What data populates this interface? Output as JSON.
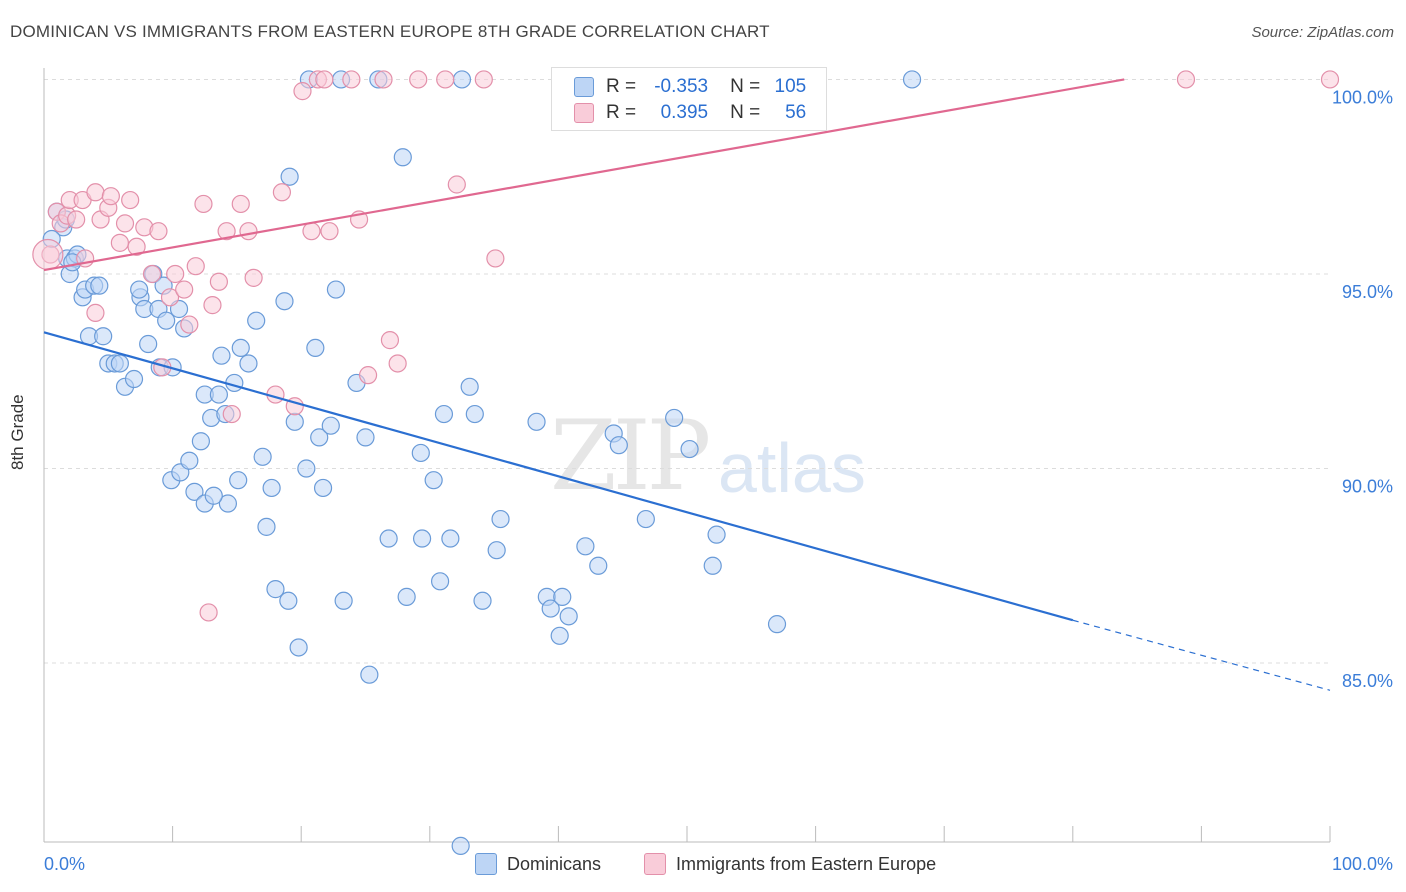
{
  "header": {
    "title": "DOMINICAN VS IMMIGRANTS FROM EASTERN EUROPE 8TH GRADE CORRELATION CHART",
    "source": "Source: ZipAtlas.com"
  },
  "watermark": {
    "zip": "ZIP",
    "atlas": "atlas"
  },
  "legend": {
    "rows": [
      {
        "r_label": "R =",
        "r_value": "-0.353",
        "n_label": "N =",
        "n_value": "105"
      },
      {
        "r_label": "R =",
        "r_value": "0.395",
        "n_label": "N =",
        "n_value": "56"
      }
    ],
    "bottom": [
      {
        "label": "Dominicans"
      },
      {
        "label": "Immigrants from Eastern Europe"
      }
    ]
  },
  "colors": {
    "blue_fill": "#bdd5f5",
    "blue_stroke": "#6a9bd8",
    "blue_line": "#2b6fd1",
    "pink_fill": "#f9ccd9",
    "pink_stroke": "#e390aa",
    "pink_line": "#e06890",
    "tick_label": "#3b7dd8"
  },
  "chart_data": {
    "type": "scatter",
    "title": "DOMINICAN VS IMMIGRANTS FROM EASTERN EUROPE 8TH GRADE CORRELATION CHART",
    "xlabel": "",
    "ylabel": "8th Grade",
    "xlim": [
      0,
      100
    ],
    "ylim": [
      80.4,
      100.5
    ],
    "x_tick_labels": [
      "0.0%",
      "100.0%"
    ],
    "y_ticks": [
      {
        "value": 100,
        "label": "100.0%"
      },
      {
        "value": 95,
        "label": "95.0%"
      },
      {
        "value": 90,
        "label": "90.0%"
      },
      {
        "value": 85,
        "label": "85.0%"
      }
    ],
    "grid": true,
    "legend_position": "top-center",
    "series": [
      {
        "name": "Dominicans",
        "R": -0.353,
        "N": 105,
        "trend": {
          "x0": 0,
          "y0": 93.5,
          "x1": 80,
          "y1": 86.1,
          "dashed_to_x": 100,
          "dashed_to_y": 84.3
        },
        "points": [
          [
            1,
            96.6
          ],
          [
            1.5,
            96.2
          ],
          [
            1.7,
            96.4
          ],
          [
            1.8,
            95.4
          ],
          [
            2,
            95
          ],
          [
            2.4,
            95.4
          ],
          [
            2.6,
            95.5
          ],
          [
            3,
            94.4
          ],
          [
            3.2,
            94.6
          ],
          [
            3.9,
            94.7
          ],
          [
            4.3,
            94.7
          ],
          [
            3.5,
            93.4
          ],
          [
            4.6,
            93.4
          ],
          [
            5,
            92.7
          ],
          [
            5.5,
            92.7
          ],
          [
            5.9,
            92.7
          ],
          [
            6.3,
            92.1
          ],
          [
            7,
            92.3
          ],
          [
            7.5,
            94.4
          ],
          [
            7.4,
            94.6
          ],
          [
            7.8,
            94.1
          ],
          [
            8.1,
            93.2
          ],
          [
            8.9,
            94.1
          ],
          [
            9,
            92.6
          ],
          [
            8.5,
            95
          ],
          [
            9.3,
            94.7
          ],
          [
            9.5,
            93.8
          ],
          [
            10,
            92.6
          ],
          [
            10.5,
            94.1
          ],
          [
            10.9,
            93.6
          ],
          [
            9.9,
            89.7
          ],
          [
            10.6,
            89.9
          ],
          [
            11.3,
            90.2
          ],
          [
            11.7,
            89.4
          ],
          [
            12.2,
            90.7
          ],
          [
            12.5,
            89.1
          ],
          [
            12.5,
            91.9
          ],
          [
            13,
            91.3
          ],
          [
            13.6,
            91.9
          ],
          [
            13.8,
            92.9
          ],
          [
            14.1,
            91.4
          ],
          [
            14.3,
            89.1
          ],
          [
            14.8,
            92.2
          ],
          [
            15.1,
            89.7
          ],
          [
            15.3,
            93.1
          ],
          [
            15.9,
            92.7
          ],
          [
            16.5,
            93.8
          ],
          [
            17,
            90.3
          ],
          [
            17.3,
            88.5
          ],
          [
            17.7,
            89.5
          ],
          [
            18,
            86.9
          ],
          [
            18.7,
            94.3
          ],
          [
            19,
            86.6
          ],
          [
            19.1,
            97.5
          ],
          [
            19.5,
            91.2
          ],
          [
            19.8,
            85.4
          ],
          [
            20.4,
            90
          ],
          [
            20.6,
            100
          ],
          [
            21.1,
            93.1
          ],
          [
            21.4,
            90.8
          ],
          [
            21.7,
            89.5
          ],
          [
            22.3,
            91.1
          ],
          [
            22.7,
            94.6
          ],
          [
            23.1,
            100
          ],
          [
            23.3,
            86.6
          ],
          [
            24.3,
            92.2
          ],
          [
            25,
            90.8
          ],
          [
            25.3,
            84.7
          ],
          [
            26,
            100
          ],
          [
            26.8,
            88.2
          ],
          [
            27.9,
            98
          ],
          [
            28.2,
            86.7
          ],
          [
            29.3,
            90.4
          ],
          [
            29.4,
            88.2
          ],
          [
            30.3,
            89.7
          ],
          [
            30.8,
            87.1
          ],
          [
            31.1,
            91.4
          ],
          [
            31.6,
            88.2
          ],
          [
            32.4,
            80.3
          ],
          [
            32.5,
            100
          ],
          [
            33.1,
            92.1
          ],
          [
            33.5,
            91.4
          ],
          [
            34.1,
            86.6
          ],
          [
            35.2,
            87.9
          ],
          [
            35.5,
            88.7
          ],
          [
            38.3,
            91.2
          ],
          [
            39.1,
            86.7
          ],
          [
            39.4,
            86.4
          ],
          [
            40.1,
            85.7
          ],
          [
            40.3,
            86.7
          ],
          [
            40.8,
            86.2
          ],
          [
            42.1,
            88
          ],
          [
            43.1,
            87.5
          ],
          [
            44.3,
            90.9
          ],
          [
            44.7,
            90.6
          ],
          [
            46.8,
            88.7
          ],
          [
            49,
            91.3
          ],
          [
            50.2,
            90.5
          ],
          [
            52,
            87.5
          ],
          [
            52.3,
            88.3
          ],
          [
            57,
            86
          ],
          [
            67.5,
            100
          ],
          [
            0.6,
            95.9
          ],
          [
            2.2,
            95.3
          ],
          [
            13.2,
            89.3
          ]
        ]
      },
      {
        "name": "Immigrants from Eastern Europe",
        "R": 0.395,
        "N": 56,
        "trend": {
          "x0": 0,
          "y0": 95.1,
          "x1": 84,
          "y1": 100
        },
        "points": [
          [
            0.5,
            95.5
          ],
          [
            1,
            96.6
          ],
          [
            1.3,
            96.3
          ],
          [
            1.8,
            96.5
          ],
          [
            2,
            96.9
          ],
          [
            2.5,
            96.4
          ],
          [
            3,
            96.9
          ],
          [
            3.2,
            95.4
          ],
          [
            4,
            94
          ],
          [
            4,
            97.1
          ],
          [
            4.4,
            96.4
          ],
          [
            5,
            96.7
          ],
          [
            5.2,
            97
          ],
          [
            5.9,
            95.8
          ],
          [
            6.3,
            96.3
          ],
          [
            6.7,
            96.9
          ],
          [
            7.2,
            95.7
          ],
          [
            7.8,
            96.2
          ],
          [
            8.4,
            95
          ],
          [
            8.9,
            96.1
          ],
          [
            9.2,
            92.6
          ],
          [
            9.8,
            94.4
          ],
          [
            10.2,
            95
          ],
          [
            10.9,
            94.6
          ],
          [
            11.3,
            93.7
          ],
          [
            11.8,
            95.2
          ],
          [
            12.4,
            96.8
          ],
          [
            12.8,
            86.3
          ],
          [
            13.1,
            94.2
          ],
          [
            13.6,
            94.8
          ],
          [
            14.2,
            96.1
          ],
          [
            14.6,
            91.4
          ],
          [
            15.3,
            96.8
          ],
          [
            15.9,
            96.1
          ],
          [
            16.3,
            94.9
          ],
          [
            18,
            91.9
          ],
          [
            18.5,
            97.1
          ],
          [
            19.5,
            91.6
          ],
          [
            20.1,
            99.7
          ],
          [
            20.8,
            96.1
          ],
          [
            21.3,
            100
          ],
          [
            21.8,
            100
          ],
          [
            22.2,
            96.1
          ],
          [
            23.9,
            100
          ],
          [
            24.5,
            96.4
          ],
          [
            25.2,
            92.4
          ],
          [
            26.4,
            100
          ],
          [
            26.9,
            93.3
          ],
          [
            27.5,
            92.7
          ],
          [
            29.1,
            100
          ],
          [
            31.2,
            100
          ],
          [
            32.1,
            97.3
          ],
          [
            34.2,
            100
          ],
          [
            35.1,
            95.4
          ],
          [
            88.8,
            100
          ],
          [
            100,
            100
          ]
        ]
      }
    ]
  }
}
